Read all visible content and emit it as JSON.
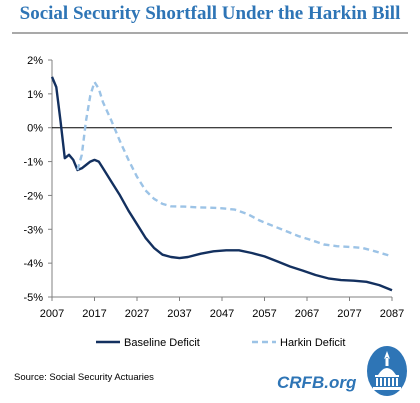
{
  "title": "Social Security Shortfall Under the Harkin Bill",
  "source": "Source: Social Security Actuaries",
  "brand": "CRFB.org",
  "colors": {
    "baseline": "#13305f",
    "harkin": "#9cc3e6",
    "title": "#2e75b6"
  },
  "chart_data": {
    "type": "line",
    "title": "Social Security Shortfall Under the Harkin Bill",
    "xlabel": "",
    "ylabel": "",
    "xlim": [
      2007,
      2087
    ],
    "ylim": [
      -5,
      2
    ],
    "x_ticks": [
      "2007",
      "2017",
      "2027",
      "2037",
      "2047",
      "2057",
      "2067",
      "2077",
      "2087"
    ],
    "y_ticks": [
      "2%",
      "1%",
      "0%",
      "-1%",
      "-2%",
      "-3%",
      "-4%",
      "-5%"
    ],
    "grid": false,
    "legend": "bottom",
    "series": [
      {
        "name": "Baseline Deficit",
        "style": "solid",
        "points": [
          [
            2007,
            1.5
          ],
          [
            2008,
            1.2
          ],
          [
            2009,
            0.2
          ],
          [
            2010,
            -0.9
          ],
          [
            2011,
            -0.8
          ],
          [
            2012,
            -0.95
          ],
          [
            2013,
            -1.25
          ],
          [
            2014,
            -1.2
          ],
          [
            2015,
            -1.1
          ],
          [
            2016,
            -1.0
          ],
          [
            2017,
            -0.95
          ],
          [
            2018,
            -1.0
          ],
          [
            2019,
            -1.2
          ],
          [
            2021,
            -1.6
          ],
          [
            2023,
            -2.0
          ],
          [
            2025,
            -2.45
          ],
          [
            2027,
            -2.85
          ],
          [
            2029,
            -3.25
          ],
          [
            2031,
            -3.55
          ],
          [
            2033,
            -3.75
          ],
          [
            2035,
            -3.82
          ],
          [
            2037,
            -3.85
          ],
          [
            2039,
            -3.82
          ],
          [
            2042,
            -3.72
          ],
          [
            2045,
            -3.65
          ],
          [
            2048,
            -3.62
          ],
          [
            2051,
            -3.62
          ],
          [
            2054,
            -3.7
          ],
          [
            2057,
            -3.8
          ],
          [
            2060,
            -3.95
          ],
          [
            2063,
            -4.1
          ],
          [
            2066,
            -4.22
          ],
          [
            2069,
            -4.35
          ],
          [
            2072,
            -4.45
          ],
          [
            2075,
            -4.5
          ],
          [
            2078,
            -4.52
          ],
          [
            2081,
            -4.55
          ],
          [
            2084,
            -4.65
          ],
          [
            2087,
            -4.8
          ]
        ]
      },
      {
        "name": "Harkin Deficit",
        "style": "dashed",
        "points": [
          [
            2013,
            -1.25
          ],
          [
            2014,
            -0.8
          ],
          [
            2015,
            0.2
          ],
          [
            2016,
            0.95
          ],
          [
            2017,
            1.35
          ],
          [
            2018,
            1.15
          ],
          [
            2019,
            0.75
          ],
          [
            2021,
            0.2
          ],
          [
            2023,
            -0.4
          ],
          [
            2025,
            -0.95
          ],
          [
            2027,
            -1.45
          ],
          [
            2029,
            -1.85
          ],
          [
            2031,
            -2.1
          ],
          [
            2033,
            -2.25
          ],
          [
            2035,
            -2.32
          ],
          [
            2038,
            -2.33
          ],
          [
            2041,
            -2.35
          ],
          [
            2044,
            -2.36
          ],
          [
            2047,
            -2.38
          ],
          [
            2050,
            -2.42
          ],
          [
            2053,
            -2.55
          ],
          [
            2056,
            -2.75
          ],
          [
            2059,
            -2.9
          ],
          [
            2062,
            -3.05
          ],
          [
            2065,
            -3.2
          ],
          [
            2068,
            -3.32
          ],
          [
            2071,
            -3.45
          ],
          [
            2074,
            -3.5
          ],
          [
            2077,
            -3.52
          ],
          [
            2080,
            -3.55
          ],
          [
            2083,
            -3.65
          ],
          [
            2087,
            -3.8
          ]
        ]
      }
    ]
  }
}
